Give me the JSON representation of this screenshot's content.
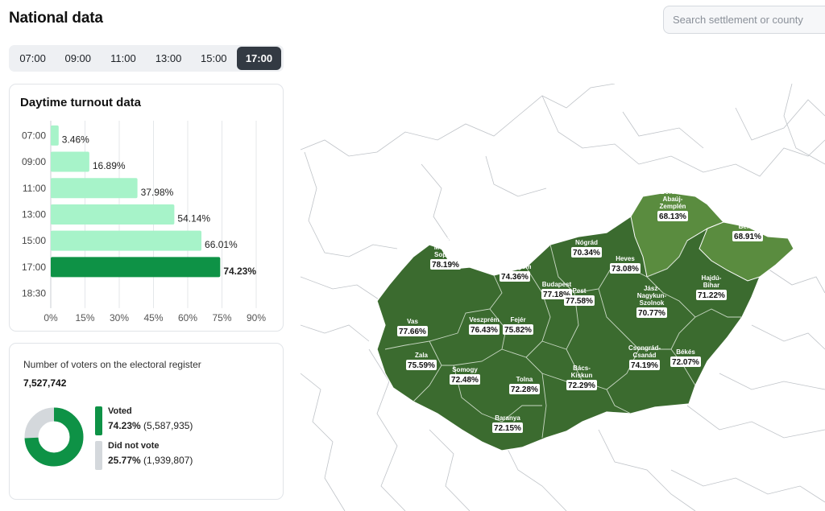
{
  "header": {
    "title": "National data",
    "search_placeholder": "Search settlement or county"
  },
  "time_tabs": [
    {
      "label": "07:00",
      "active": false
    },
    {
      "label": "09:00",
      "active": false
    },
    {
      "label": "11:00",
      "active": false
    },
    {
      "label": "13:00",
      "active": false
    },
    {
      "label": "15:00",
      "active": false
    },
    {
      "label": "17:00",
      "active": true
    }
  ],
  "turnout": {
    "title": "Daytime turnout data"
  },
  "chart_data": {
    "type": "bar",
    "orientation": "horizontal",
    "title": "Daytime turnout data",
    "categories": [
      "07:00",
      "09:00",
      "11:00",
      "13:00",
      "15:00",
      "17:00",
      "18:30"
    ],
    "values": [
      3.46,
      16.89,
      37.98,
      54.14,
      66.01,
      74.23,
      null
    ],
    "value_labels": [
      "3.46%",
      "16.89%",
      "37.98%",
      "54.14%",
      "66.01%",
      "74.23%",
      ""
    ],
    "highlight": "17:00",
    "x_ticks": [
      "0%",
      "15%",
      "30%",
      "45%",
      "60%",
      "75%",
      "90%"
    ],
    "xlim": [
      0,
      90
    ],
    "grid": true,
    "colors": {
      "bar": "#a7f3c9",
      "highlight": "#0e9246"
    }
  },
  "voters": {
    "label": "Number of voters on the electoral register",
    "count": "7,527,742",
    "voted": {
      "name": "Voted",
      "pct": "74.23%",
      "count": "(5,587,935)",
      "fraction": 0.7423,
      "color": "#0e9246"
    },
    "not_voted": {
      "name": "Did not vote",
      "pct": "25.77%",
      "count": "(1,939,807)",
      "fraction": 0.2577,
      "color": "#d4d8dc"
    }
  },
  "map": {
    "colors": {
      "county": "#3b6b2f",
      "light": "#5a8c3f",
      "border": "#ffffff",
      "region": "#b7bcc2"
    },
    "counties": [
      {
        "name": "Győr-\nMoson-\nSopron",
        "pct": "78.19%",
        "shade": "dark"
      },
      {
        "name": "Komárom-\nEsztergom",
        "pct": "74.36%",
        "shade": "dark"
      },
      {
        "name": "Nógrád",
        "pct": "70.34%",
        "shade": "dark"
      },
      {
        "name": "Borsod-\nAbaúj-\nZemplén",
        "pct": "68.13%",
        "shade": "light"
      },
      {
        "name": "Szabolcs-\nSzatmár-\nBereg",
        "pct": "68.91%",
        "shade": "light"
      },
      {
        "name": "Heves",
        "pct": "73.08%",
        "shade": "dark"
      },
      {
        "name": "Budapest",
        "pct": "77.18%",
        "shade": "dark"
      },
      {
        "name": "Pest",
        "pct": "77.58%",
        "shade": "dark"
      },
      {
        "name": "Hajdú-\nBihar",
        "pct": "71.22%",
        "shade": "dark"
      },
      {
        "name": "Vas",
        "pct": "77.66%",
        "shade": "dark"
      },
      {
        "name": "Veszprém",
        "pct": "76.43%",
        "shade": "dark"
      },
      {
        "name": "Fejér",
        "pct": "75.82%",
        "shade": "dark"
      },
      {
        "name": "Jász-\nNagykun-\nSzolnok",
        "pct": "70.77%",
        "shade": "dark"
      },
      {
        "name": "Zala",
        "pct": "75.59%",
        "shade": "dark"
      },
      {
        "name": "Somogy",
        "pct": "72.48%",
        "shade": "dark"
      },
      {
        "name": "Tolna",
        "pct": "72.28%",
        "shade": "dark"
      },
      {
        "name": "Bács-\nKiskun",
        "pct": "72.29%",
        "shade": "dark"
      },
      {
        "name": "Csongrád-\nCsanád",
        "pct": "74.19%",
        "shade": "dark"
      },
      {
        "name": "Békés",
        "pct": "72.07%",
        "shade": "dark"
      },
      {
        "name": "Baranya",
        "pct": "72.15%",
        "shade": "dark"
      }
    ]
  }
}
